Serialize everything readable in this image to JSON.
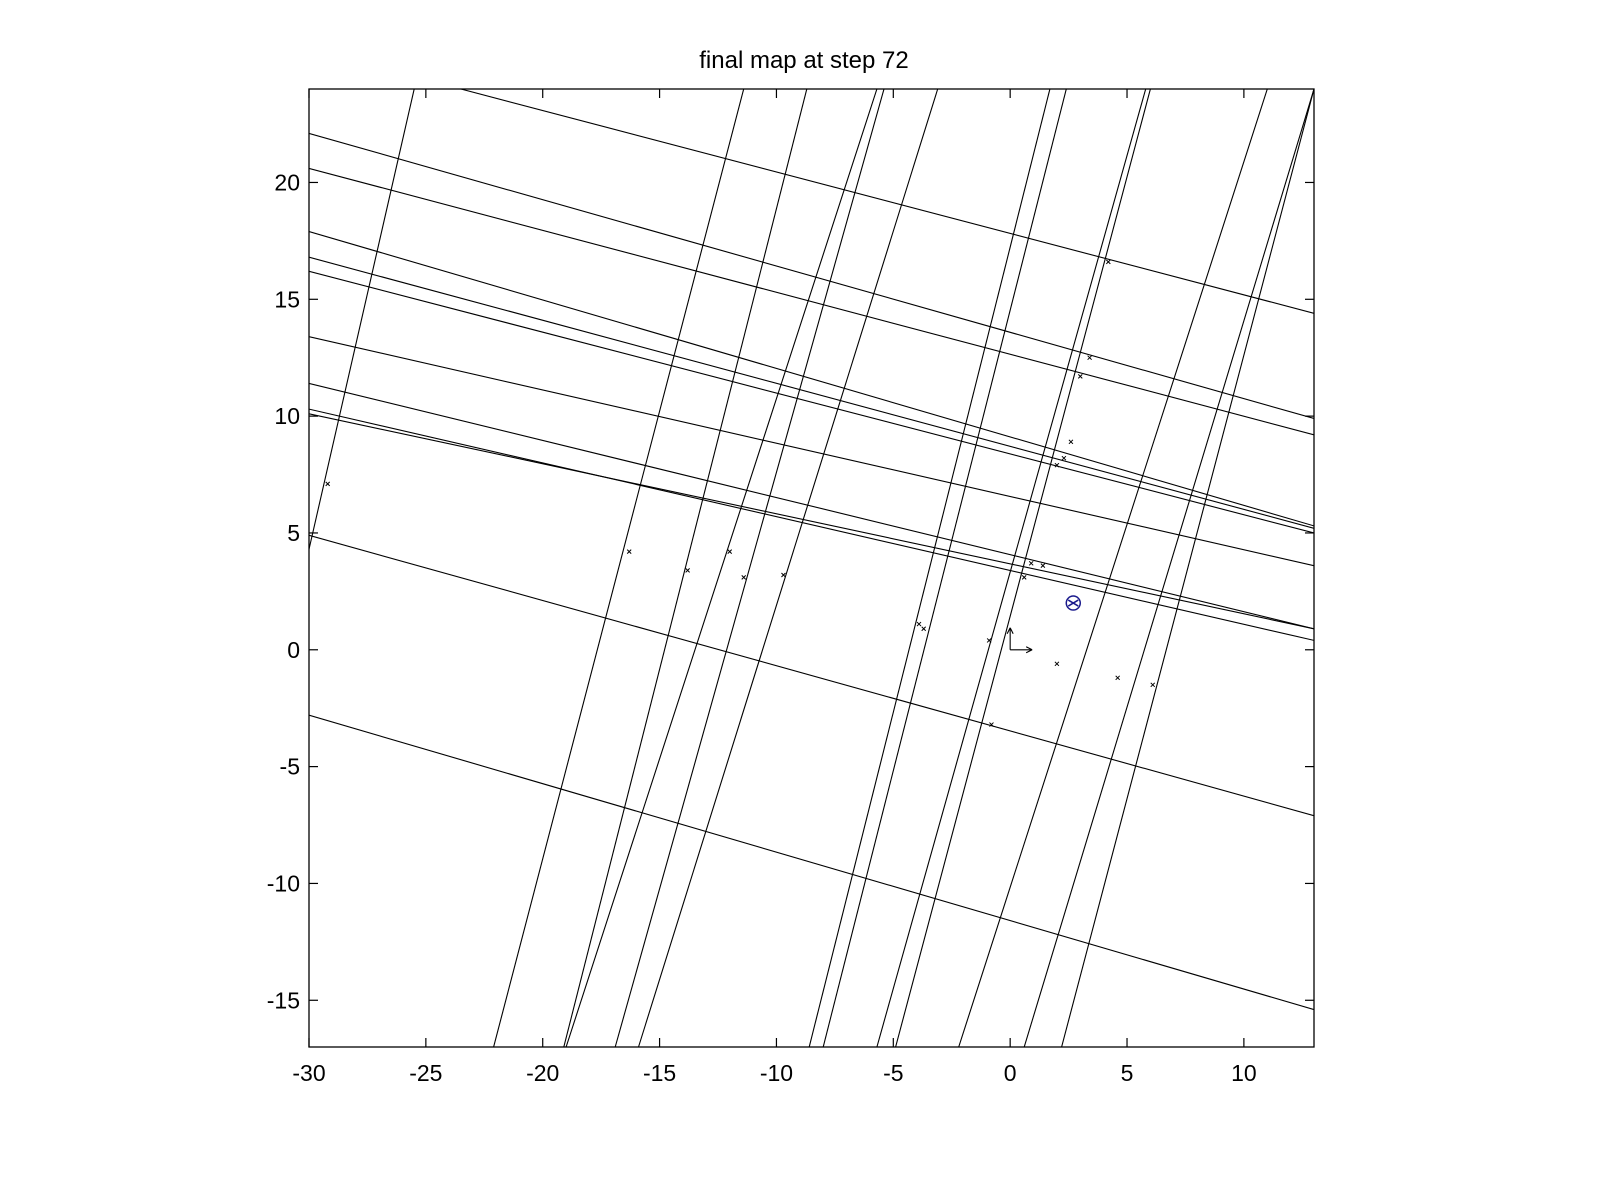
{
  "chart_data": {
    "type": "line",
    "title": "final map at step 72",
    "xlabel": "",
    "ylabel": "",
    "xlim": [
      -30,
      13
    ],
    "ylim": [
      -17,
      24
    ],
    "xticks": [
      "-30",
      "-25",
      "-20",
      "-15",
      "-10",
      "-5",
      "0",
      "5",
      "10"
    ],
    "yticks": [
      "-15",
      "-10",
      "-5",
      "0",
      "5",
      "10",
      "15",
      "20"
    ],
    "grid": false,
    "legend": "none",
    "colors": {
      "lines": "#000000",
      "robot": "#1a1a8c",
      "background": "#ffffff"
    },
    "series": [
      {
        "values": [
          [
            -30,
            22.1
          ],
          [
            13,
            9.9
          ]
        ]
      },
      {
        "values": [
          [
            -30,
            20.6
          ],
          [
            13,
            9.2
          ]
        ]
      },
      {
        "values": [
          [
            -30,
            17.9
          ],
          [
            13,
            5.3
          ]
        ]
      },
      {
        "values": [
          [
            -30,
            16.8
          ],
          [
            13,
            5.2
          ]
        ]
      },
      {
        "values": [
          [
            -30,
            16.2
          ],
          [
            13,
            5.0
          ]
        ]
      },
      {
        "values": [
          [
            -30,
            13.4
          ],
          [
            13,
            3.6
          ]
        ]
      },
      {
        "values": [
          [
            -30,
            11.4
          ],
          [
            13,
            0.9
          ]
        ]
      },
      {
        "values": [
          [
            -30,
            10.3
          ],
          [
            13,
            0.4
          ]
        ]
      },
      {
        "values": [
          [
            -30,
            10.1
          ],
          [
            13,
            0.9
          ]
        ]
      },
      {
        "values": [
          [
            -30,
            4.9
          ],
          [
            13,
            -7.1
          ]
        ]
      },
      {
        "values": [
          [
            -30,
            -2.8
          ],
          [
            13,
            -15.4
          ]
        ]
      },
      {
        "values": [
          [
            -23.5,
            24
          ],
          [
            13,
            14.4
          ]
        ]
      },
      {
        "values": [
          [
            -25.5,
            24
          ],
          [
            -30,
            4.3
          ]
        ]
      },
      {
        "values": [
          [
            -11.4,
            24
          ],
          [
            -22.1,
            -17
          ]
        ]
      },
      {
        "values": [
          [
            -8.7,
            24
          ],
          [
            -19.1,
            -17
          ]
        ]
      },
      {
        "values": [
          [
            -5.7,
            24
          ],
          [
            -19.0,
            -17
          ]
        ]
      },
      {
        "values": [
          [
            -5.4,
            24
          ],
          [
            -16.9,
            -17
          ]
        ]
      },
      {
        "values": [
          [
            -3.1,
            24
          ],
          [
            -15.9,
            -17
          ]
        ]
      },
      {
        "values": [
          [
            1.7,
            24
          ],
          [
            -8.6,
            -17
          ]
        ]
      },
      {
        "values": [
          [
            2.4,
            24
          ],
          [
            -8.0,
            -17
          ]
        ]
      },
      {
        "values": [
          [
            5.8,
            24
          ],
          [
            -5.7,
            -17
          ]
        ]
      },
      {
        "values": [
          [
            6.0,
            24
          ],
          [
            -4.9,
            -17
          ]
        ]
      },
      {
        "values": [
          [
            11.0,
            24
          ],
          [
            -2.2,
            -17
          ]
        ]
      },
      {
        "values": [
          [
            13.0,
            24
          ],
          [
            0.6,
            -17
          ]
        ]
      },
      {
        "values": [
          [
            13.0,
            24
          ],
          [
            2.2,
            -17
          ]
        ]
      }
    ],
    "landmarks": [
      [
        -29.2,
        7.1
      ],
      [
        -16.3,
        4.2
      ],
      [
        -13.8,
        3.4
      ],
      [
        -12.0,
        4.2
      ],
      [
        -11.4,
        3.1
      ],
      [
        -9.7,
        3.2
      ],
      [
        -3.9,
        1.1
      ],
      [
        -3.7,
        0.9
      ],
      [
        -0.9,
        0.4
      ],
      [
        -0.8,
        -3.2
      ],
      [
        0.6,
        3.1
      ],
      [
        0.9,
        3.7
      ],
      [
        1.4,
        3.6
      ],
      [
        2.0,
        -0.6
      ],
      [
        2.0,
        7.9
      ],
      [
        2.3,
        8.2
      ],
      [
        2.6,
        8.9
      ],
      [
        3.0,
        11.7
      ],
      [
        3.4,
        12.5
      ],
      [
        4.2,
        16.6
      ],
      [
        4.6,
        -1.2
      ],
      [
        6.1,
        -1.5
      ]
    ],
    "robot": {
      "x": 2.7,
      "y": 2.0
    },
    "origin_frame": {
      "x": 0,
      "y": 0
    }
  }
}
